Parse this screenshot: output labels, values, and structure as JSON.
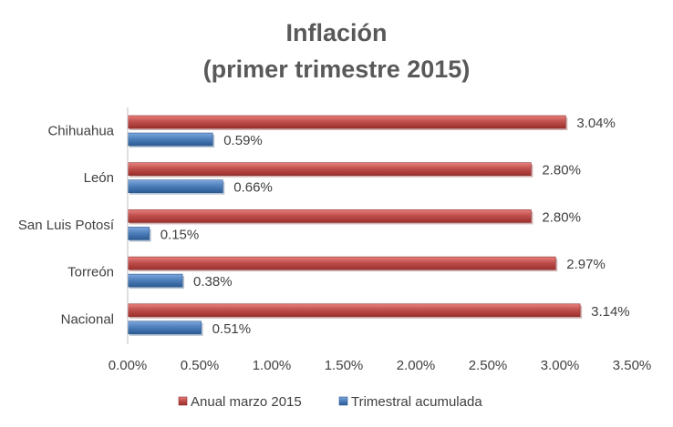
{
  "chart_data": {
    "type": "bar",
    "orientation": "horizontal",
    "title": [
      "Inflación",
      "(primer trimestre 2015)"
    ],
    "categories": [
      "Chihuahua",
      "León",
      "San Luis Potosí",
      "Torreón",
      "Nacional"
    ],
    "series": [
      {
        "name": "Anual marzo 2015",
        "color": "#c0504d",
        "values": [
          3.04,
          2.8,
          2.8,
          2.97,
          3.14
        ],
        "labels": [
          "3.04%",
          "2.80%",
          "2.80%",
          "2.97%",
          "3.14%"
        ]
      },
      {
        "name": "Trimestral acumulada",
        "color": "#4f81bd",
        "values": [
          0.59,
          0.66,
          0.15,
          0.38,
          0.51
        ],
        "labels": [
          "0.59%",
          "0.66%",
          "0.15%",
          "0.38%",
          "0.51%"
        ]
      }
    ],
    "xlim": [
      0,
      3.5
    ],
    "xticks": [
      "0.00%",
      "0.50%",
      "1.00%",
      "1.50%",
      "2.00%",
      "2.50%",
      "3.00%",
      "3.50%"
    ],
    "grid": false,
    "legend_position": "bottom"
  }
}
